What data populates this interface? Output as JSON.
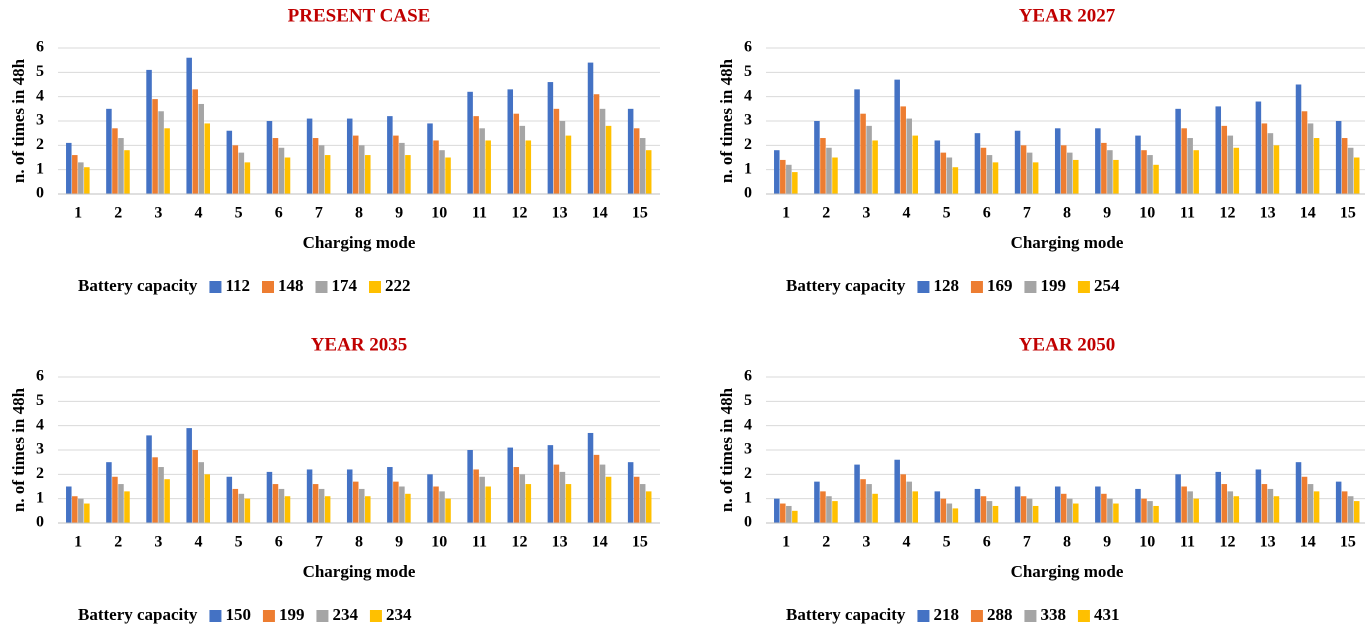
{
  "chart_data": [
    {
      "type": "bar",
      "title": "PRESENT CASE",
      "x_label": "Charging mode",
      "y_label": "n. of times in 48h",
      "legend_title": "Battery capacity",
      "categories": [
        "1",
        "2",
        "3",
        "4",
        "5",
        "6",
        "7",
        "8",
        "9",
        "10",
        "11",
        "12",
        "13",
        "14",
        "15"
      ],
      "series": [
        {
          "name": "112",
          "color": "#4472c4",
          "values": [
            2.1,
            3.5,
            5.1,
            5.6,
            2.6,
            3.0,
            3.1,
            3.1,
            3.2,
            2.9,
            4.2,
            4.3,
            4.6,
            5.4,
            3.5
          ]
        },
        {
          "name": "148",
          "color": "#ed7d31",
          "values": [
            1.6,
            2.7,
            3.9,
            4.3,
            2.0,
            2.3,
            2.3,
            2.4,
            2.4,
            2.2,
            3.2,
            3.3,
            3.5,
            4.1,
            2.7
          ]
        },
        {
          "name": "174",
          "color": "#a5a5a5",
          "values": [
            1.3,
            2.3,
            3.4,
            3.7,
            1.7,
            1.9,
            2.0,
            2.0,
            2.1,
            1.8,
            2.7,
            2.8,
            3.0,
            3.5,
            2.3
          ]
        },
        {
          "name": "222",
          "color": "#ffc000",
          "values": [
            1.1,
            1.8,
            2.7,
            2.9,
            1.3,
            1.5,
            1.6,
            1.6,
            1.6,
            1.5,
            2.2,
            2.2,
            2.4,
            2.8,
            1.8
          ]
        }
      ],
      "ylim": [
        0,
        6
      ],
      "yticks": [
        0,
        1,
        2,
        3,
        4,
        5,
        6
      ],
      "grid": true
    },
    {
      "type": "bar",
      "title": "YEAR 2027",
      "x_label": "Charging mode",
      "y_label": "n. of times in 48h",
      "legend_title": "Battery capacity",
      "categories": [
        "1",
        "2",
        "3",
        "4",
        "5",
        "6",
        "7",
        "8",
        "9",
        "10",
        "11",
        "12",
        "13",
        "14",
        "15"
      ],
      "series": [
        {
          "name": "128",
          "color": "#4472c4",
          "values": [
            1.8,
            3.0,
            4.3,
            4.7,
            2.2,
            2.5,
            2.6,
            2.7,
            2.7,
            2.4,
            3.5,
            3.6,
            3.8,
            4.5,
            3.0
          ]
        },
        {
          "name": "169",
          "color": "#ed7d31",
          "values": [
            1.4,
            2.3,
            3.3,
            3.6,
            1.7,
            1.9,
            2.0,
            2.0,
            2.1,
            1.8,
            2.7,
            2.8,
            2.9,
            3.4,
            2.3
          ]
        },
        {
          "name": "199",
          "color": "#a5a5a5",
          "values": [
            1.2,
            1.9,
            2.8,
            3.1,
            1.5,
            1.6,
            1.7,
            1.7,
            1.8,
            1.6,
            2.3,
            2.4,
            2.5,
            2.9,
            1.9
          ]
        },
        {
          "name": "254",
          "color": "#ffc000",
          "values": [
            0.9,
            1.5,
            2.2,
            2.4,
            1.1,
            1.3,
            1.3,
            1.4,
            1.4,
            1.2,
            1.8,
            1.9,
            2.0,
            2.3,
            1.5
          ]
        }
      ],
      "ylim": [
        0,
        6
      ],
      "yticks": [
        0,
        1,
        2,
        3,
        4,
        5,
        6
      ],
      "grid": true
    },
    {
      "type": "bar",
      "title": "YEAR 2035",
      "x_label": "Charging mode",
      "y_label": "n. of times in 48h",
      "legend_title": "Battery capacity",
      "categories": [
        "1",
        "2",
        "3",
        "4",
        "5",
        "6",
        "7",
        "8",
        "9",
        "10",
        "11",
        "12",
        "13",
        "14",
        "15"
      ],
      "series": [
        {
          "name": "150",
          "color": "#4472c4",
          "values": [
            1.5,
            2.5,
            3.6,
            3.9,
            1.9,
            2.1,
            2.2,
            2.2,
            2.3,
            2.0,
            3.0,
            3.1,
            3.2,
            3.7,
            2.5
          ]
        },
        {
          "name": "199",
          "color": "#ed7d31",
          "values": [
            1.1,
            1.9,
            2.7,
            3.0,
            1.4,
            1.6,
            1.6,
            1.7,
            1.7,
            1.5,
            2.2,
            2.3,
            2.4,
            2.8,
            1.9
          ]
        },
        {
          "name": "234",
          "color": "#a5a5a5",
          "values": [
            1.0,
            1.6,
            2.3,
            2.5,
            1.2,
            1.4,
            1.4,
            1.4,
            1.5,
            1.3,
            1.9,
            2.0,
            2.1,
            2.4,
            1.6
          ]
        },
        {
          "name": "234",
          "color": "#ffc000",
          "values": [
            0.8,
            1.3,
            1.8,
            2.0,
            1.0,
            1.1,
            1.1,
            1.1,
            1.2,
            1.0,
            1.5,
            1.6,
            1.6,
            1.9,
            1.3
          ]
        }
      ],
      "ylim": [
        0,
        6
      ],
      "yticks": [
        0,
        1,
        2,
        3,
        4,
        5,
        6
      ],
      "grid": true
    },
    {
      "type": "bar",
      "title": "YEAR 2050",
      "x_label": "Charging mode",
      "y_label": "n. of times in 48h",
      "legend_title": "Battery capacity",
      "categories": [
        "1",
        "2",
        "3",
        "4",
        "5",
        "6",
        "7",
        "8",
        "9",
        "10",
        "11",
        "12",
        "13",
        "14",
        "15"
      ],
      "series": [
        {
          "name": "218",
          "color": "#4472c4",
          "values": [
            1.0,
            1.7,
            2.4,
            2.6,
            1.3,
            1.4,
            1.5,
            1.5,
            1.5,
            1.4,
            2.0,
            2.1,
            2.2,
            2.5,
            1.7
          ]
        },
        {
          "name": "288",
          "color": "#ed7d31",
          "values": [
            0.8,
            1.3,
            1.8,
            2.0,
            1.0,
            1.1,
            1.1,
            1.2,
            1.2,
            1.0,
            1.5,
            1.6,
            1.6,
            1.9,
            1.3
          ]
        },
        {
          "name": "338",
          "color": "#a5a5a5",
          "values": [
            0.7,
            1.1,
            1.6,
            1.7,
            0.8,
            0.9,
            1.0,
            1.0,
            1.0,
            0.9,
            1.3,
            1.3,
            1.4,
            1.6,
            1.1
          ]
        },
        {
          "name": "431",
          "color": "#ffc000",
          "values": [
            0.5,
            0.9,
            1.2,
            1.3,
            0.6,
            0.7,
            0.7,
            0.8,
            0.8,
            0.7,
            1.0,
            1.1,
            1.1,
            1.3,
            0.9
          ]
        }
      ],
      "ylim": [
        0,
        6
      ],
      "yticks": [
        0,
        1,
        2,
        3,
        4,
        5,
        6
      ],
      "grid": true
    }
  ]
}
